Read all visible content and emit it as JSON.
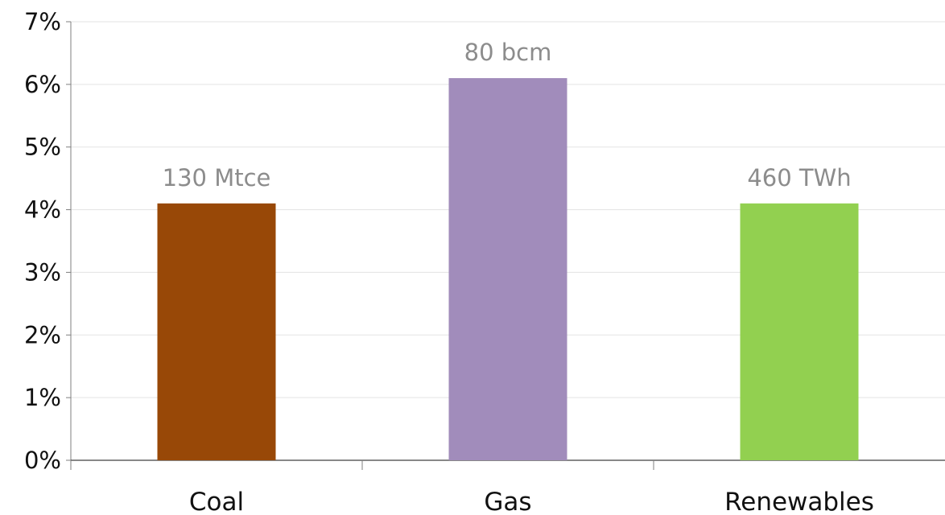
{
  "chart_data": {
    "type": "bar",
    "title": "",
    "xlabel": "",
    "ylabel": "",
    "categories": [
      "Coal",
      "Gas",
      "Renewables"
    ],
    "values": [
      4.1,
      6.1,
      4.1
    ],
    "data_labels": [
      "130 Mtce",
      "80 bcm",
      "460 TWh"
    ],
    "colors": [
      "#984807",
      "#a18cbb",
      "#92d050"
    ],
    "ylim": [
      0,
      7
    ],
    "yticks": [
      0,
      1,
      2,
      3,
      4,
      5,
      6,
      7
    ],
    "ytick_labels": [
      "0%",
      "1%",
      "2%",
      "3%",
      "4%",
      "5%",
      "6%",
      "7%"
    ],
    "grid": true,
    "legend": "none"
  }
}
